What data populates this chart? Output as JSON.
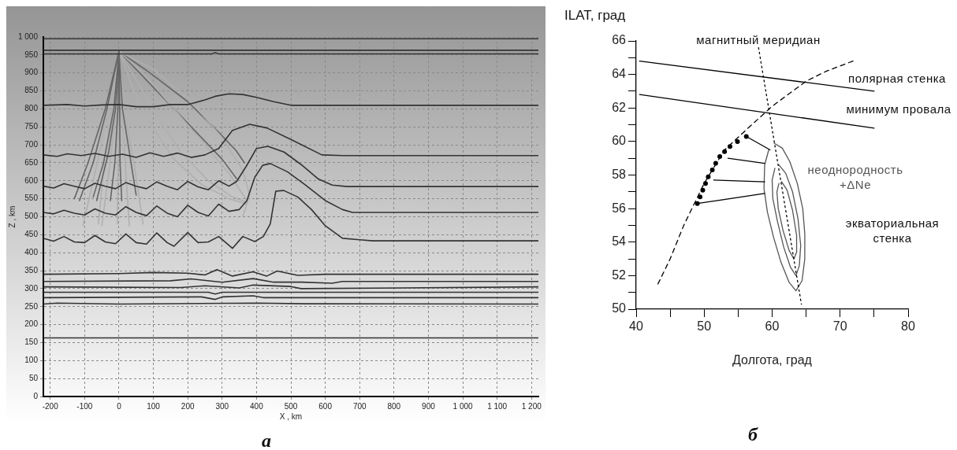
{
  "chart_data": [
    {
      "type": "line",
      "xlabel": "X , km",
      "ylabel": "Z , km",
      "xlim": [
        -220,
        1220
      ],
      "ylim": [
        0,
        1000
      ],
      "xticks": [
        -200,
        -100,
        0,
        100,
        200,
        300,
        400,
        500,
        600,
        700,
        800,
        900,
        {
          "value": 1000,
          "label": "1 000"
        },
        {
          "value": 1100,
          "label": "1 100"
        },
        {
          "value": 1200,
          "label": "1 200"
        }
      ],
      "yticks": [
        0,
        50,
        100,
        150,
        200,
        250,
        300,
        350,
        400,
        450,
        500,
        550,
        600,
        650,
        700,
        750,
        800,
        850,
        900,
        950,
        {
          "value": 1000,
          "label": "1 000"
        }
      ],
      "grid": true,
      "marker": "none",
      "annotations": [
        "а"
      ],
      "series": [
        {
          "color": "#333333",
          "x": [
            -220,
            1220
          ],
          "values": [
            995,
            995
          ]
        },
        {
          "color": "#333333",
          "x": [
            -220,
            1220
          ],
          "values": [
            963,
            963
          ]
        },
        {
          "color": "#333333",
          "x": [
            -220,
            270,
            280,
            290,
            1220
          ],
          "values": [
            953,
            953,
            956,
            953,
            953
          ]
        },
        {
          "color": "#333333",
          "x": [
            -220,
            -150,
            -100,
            -50,
            0,
            50,
            100,
            150,
            200,
            250,
            280,
            320,
            360,
            400,
            450,
            500,
            600,
            800,
            1220
          ],
          "values": [
            810,
            812,
            808,
            811,
            812,
            806,
            806,
            812,
            812,
            825,
            835,
            842,
            840,
            832,
            820,
            810,
            810,
            810,
            810
          ]
        },
        {
          "color": "#333333",
          "x": [
            -220,
            -180,
            -150,
            -110,
            -70,
            -30,
            10,
            50,
            90,
            130,
            170,
            210,
            250,
            290,
            330,
            380,
            430,
            500,
            590,
            650,
            1220
          ],
          "values": [
            672,
            668,
            675,
            670,
            676,
            668,
            674,
            665,
            678,
            668,
            677,
            665,
            672,
            690,
            740,
            757,
            747,
            715,
            672,
            670,
            670
          ]
        },
        {
          "color": "#333333",
          "x": [
            -220,
            -190,
            -160,
            -130,
            -100,
            -70,
            -40,
            -10,
            20,
            50,
            80,
            110,
            140,
            170,
            200,
            230,
            260,
            290,
            320,
            342,
            370,
            400,
            433,
            480,
            530,
            580,
            620,
            663,
            1220
          ],
          "values": [
            585,
            580,
            592,
            585,
            578,
            593,
            585,
            578,
            595,
            585,
            578,
            597,
            585,
            575,
            598,
            583,
            575,
            600,
            585,
            598,
            640,
            690,
            696,
            680,
            645,
            605,
            588,
            584,
            584
          ]
        },
        {
          "color": "#333333",
          "x": [
            -220,
            -190,
            -160,
            -130,
            -100,
            -70,
            -40,
            -10,
            20,
            50,
            80,
            110,
            140,
            170,
            200,
            230,
            260,
            290,
            320,
            350,
            372,
            395,
            418,
            440,
            490,
            540,
            600,
            650,
            679,
            1220
          ],
          "values": [
            512,
            508,
            518,
            510,
            505,
            522,
            510,
            505,
            528,
            512,
            503,
            530,
            510,
            500,
            532,
            512,
            502,
            535,
            515,
            520,
            545,
            610,
            643,
            648,
            625,
            590,
            545,
            520,
            512,
            512
          ]
        },
        {
          "color": "#333333",
          "x": [
            -220,
            -190,
            -160,
            -130,
            -100,
            -70,
            -40,
            -10,
            20,
            50,
            80,
            110,
            140,
            160,
            200,
            230,
            260,
            290,
            330,
            360,
            395,
            420,
            440,
            456,
            479,
            520,
            560,
            600,
            650,
            700,
            738,
            1220
          ],
          "values": [
            440,
            432,
            445,
            430,
            428,
            448,
            430,
            425,
            452,
            428,
            424,
            455,
            428,
            418,
            456,
            428,
            430,
            445,
            412,
            445,
            431,
            445,
            480,
            571,
            573,
            555,
            520,
            475,
            440,
            436,
            433,
            433
          ]
        },
        {
          "color": "#333333",
          "x": [
            -220,
            0,
            100,
            200,
            250,
            285,
            330,
            390,
            430,
            460,
            520,
            600,
            1220
          ],
          "values": [
            340,
            342,
            345,
            343,
            338,
            353,
            335,
            347,
            335,
            349,
            337,
            340,
            340
          ]
        },
        {
          "color": "#333333",
          "x": [
            -220,
            150,
            210,
            300,
            390,
            450,
            530,
            620,
            650,
            1220
          ],
          "values": [
            320,
            322,
            327,
            318,
            328,
            318,
            318,
            315,
            320,
            320
          ]
        },
        {
          "color": "#333333",
          "x": [
            -220,
            180,
            250,
            350,
            390,
            500,
            530,
            1220
          ],
          "values": [
            305,
            303,
            308,
            302,
            310,
            306,
            300,
            305
          ]
        },
        {
          "color": "#333333",
          "x": [
            -220,
            260,
            280,
            300,
            1220
          ],
          "values": [
            290,
            290,
            285,
            290,
            290
          ]
        },
        {
          "color": "#333333",
          "x": [
            -220,
            240,
            280,
            300,
            390,
            420,
            1220
          ],
          "values": [
            275,
            277,
            270,
            277,
            280,
            275,
            275
          ]
        },
        {
          "color": "#333333",
          "x": [
            -220,
            -180,
            0,
            400,
            540,
            1220
          ],
          "values": [
            257,
            260,
            257,
            260,
            258,
            257
          ]
        },
        {
          "color": "#333333",
          "x": [
            -220,
            1220
          ],
          "values": [
            163,
            163
          ]
        },
        {
          "color": "#666666",
          "x": [
            0,
            -40,
            -90,
            -130
          ],
          "values": [
            960,
            800,
            650,
            550
          ]
        },
        {
          "color": "#666666",
          "x": [
            0,
            -35,
            -75,
            -115
          ],
          "values": [
            960,
            800,
            650,
            545
          ]
        },
        {
          "color": "#666666",
          "x": [
            0,
            -15,
            -45,
            -75
          ],
          "values": [
            960,
            800,
            650,
            555
          ]
        },
        {
          "color": "#666666",
          "x": [
            0,
            -10,
            -30,
            -65
          ],
          "values": [
            960,
            800,
            680,
            545
          ]
        },
        {
          "color": "#666666",
          "x": [
            0,
            -3,
            -12,
            -25
          ],
          "values": [
            960,
            800,
            650,
            545
          ]
        },
        {
          "color": "#666666",
          "x": [
            0,
            2,
            3,
            8
          ],
          "values": [
            960,
            800,
            650,
            545
          ]
        },
        {
          "color": "#666666",
          "x": [
            0,
            10,
            30,
            50
          ],
          "values": [
            960,
            800,
            680,
            560
          ]
        },
        {
          "color": "#b0b0b0",
          "x": [
            0,
            -30,
            -70,
            -105
          ],
          "values": [
            960,
            800,
            620,
            475
          ]
        },
        {
          "color": "#b0b0b0",
          "x": [
            0,
            -20,
            -45,
            -60
          ],
          "values": [
            960,
            800,
            630,
            480
          ]
        },
        {
          "color": "#b0b0b0",
          "x": [
            0,
            -10,
            -30,
            -50
          ],
          "values": [
            960,
            780,
            620,
            475
          ]
        },
        {
          "color": "#b0b0b0",
          "x": [
            0,
            0,
            -3,
            -5
          ],
          "values": [
            960,
            800,
            620,
            480
          ]
        },
        {
          "color": "#b0b0b0",
          "x": [
            0,
            8,
            20,
            30
          ],
          "values": [
            960,
            800,
            620,
            475
          ]
        },
        {
          "color": "#b0b0b0",
          "x": [
            0,
            15,
            45,
            70
          ],
          "values": [
            960,
            800,
            640,
            480
          ]
        },
        {
          "color": "#b0b0b0",
          "x": [
            0,
            50,
            110,
            180,
            260,
            330,
            372
          ],
          "values": [
            960,
            880,
            780,
            680,
            600,
            555,
            540
          ]
        },
        {
          "color": "#b0b0b0",
          "x": [
            0,
            70,
            160,
            250,
            320,
            372
          ],
          "values": [
            960,
            900,
            800,
            700,
            620,
            545
          ]
        },
        {
          "color": "#b0b0b0",
          "x": [
            0,
            100,
            210,
            300,
            360,
            380,
            360
          ],
          "values": [
            960,
            910,
            820,
            720,
            630,
            560,
            500
          ]
        },
        {
          "color": "#b0b0b0",
          "x": [
            0,
            40,
            90,
            160,
            240,
            320,
            372
          ],
          "values": [
            960,
            860,
            760,
            660,
            590,
            550,
            535
          ]
        },
        {
          "color": "#666666",
          "x": [
            0,
            60,
            150,
            230,
            300,
            342
          ],
          "values": [
            960,
            900,
            810,
            730,
            660,
            606
          ]
        },
        {
          "color": "#666666",
          "x": [
            0,
            90,
            200,
            290,
            340,
            365
          ],
          "values": [
            960,
            900,
            820,
            735,
            685,
            650
          ]
        }
      ]
    },
    {
      "type": "line",
      "xlabel": "Долгота, град",
      "ylabel": "ILAT, град",
      "xlim": [
        40,
        80
      ],
      "ylim": [
        50,
        66
      ],
      "xticks": [
        40,
        {
          "value": 45,
          "label": null
        },
        50,
        {
          "value": 55,
          "label": null
        },
        60,
        {
          "value": 65,
          "label": null
        },
        70,
        {
          "value": 75,
          "label": null
        },
        80
      ],
      "yticks": [
        50,
        {
          "value": 51,
          "label": null
        },
        52,
        {
          "value": 53,
          "label": null
        },
        54,
        {
          "value": 55,
          "label": null
        },
        56,
        {
          "value": 57,
          "label": null
        },
        58,
        {
          "value": 59,
          "label": null
        },
        60,
        {
          "value": 61,
          "label": null
        },
        62,
        {
          "value": 63,
          "label": null
        },
        64,
        {
          "value": 65,
          "label": null
        },
        66
      ],
      "marker": "none",
      "annotations": [
        "магнитный меридиан",
        "полярная стенка",
        "минимум провала",
        "неоднородность\n+ΔNe",
        "экваториальная\nстенка",
        "б"
      ],
      "series": [
        {
          "color": "#000000",
          "x": [
            40.5,
            75
          ],
          "values": [
            64.8,
            63.0
          ]
        },
        {
          "color": "#000000",
          "x": [
            40.5,
            75
          ],
          "values": [
            62.8,
            60.8
          ]
        },
        {
          "color": "#000000",
          "line_style": "dotted",
          "x": [
            58.0,
            64.3
          ],
          "values": [
            65.6,
            50.3
          ]
        },
        {
          "color": "#000000",
          "line_style": "dashed",
          "x": [
            43.2,
            45,
            47,
            50,
            53,
            57,
            60,
            65,
            68,
            71.9
          ],
          "values": [
            51.5,
            53,
            55,
            57.5,
            59.5,
            61,
            62.1,
            63.6,
            64.2,
            64.8
          ]
        },
        {
          "color": "#000000",
          "x": [
            56.2,
            59.7
          ],
          "values": [
            60.3,
            59.5
          ]
        },
        {
          "color": "#000000",
          "x": [
            53.5,
            58.9
          ],
          "values": [
            59.0,
            58.7
          ]
        },
        {
          "color": "#000000",
          "x": [
            51.4,
            58.9
          ],
          "values": [
            57.7,
            57.6
          ]
        },
        {
          "color": "#000000",
          "x": [
            49.0,
            58.9
          ],
          "values": [
            56.3,
            56.9
          ]
        },
        {
          "color": "#555555",
          "x": [
            60.3,
            61.5,
            62.6,
            63.7,
            64.5,
            64.8,
            64.8,
            64.4,
            63.5,
            62.5,
            61.3,
            60.2,
            59.3,
            58.8,
            58.9,
            59.5
          ],
          "values": [
            59.9,
            59.6,
            58.8,
            57.5,
            56.0,
            54.5,
            53.0,
            51.7,
            51.1,
            51.6,
            52.8,
            54.3,
            55.8,
            57.2,
            58.6,
            59.5
          ]
        },
        {
          "color": "#555555",
          "x": [
            61.0,
            62.0,
            63.0,
            63.8,
            64.2,
            64.0,
            63.5,
            62.7,
            61.7,
            60.8,
            60.1,
            60.0,
            60.4
          ],
          "values": [
            58.6,
            58.1,
            57.0,
            55.4,
            53.8,
            52.6,
            52.0,
            52.5,
            53.7,
            55.2,
            56.6,
            57.7,
            58.4
          ]
        },
        {
          "color": "#555555",
          "x": [
            61.4,
            62.2,
            63.0,
            63.6,
            63.6,
            63.2,
            62.5,
            61.6,
            60.9,
            60.7,
            61.0
          ],
          "values": [
            57.6,
            57.1,
            55.9,
            54.4,
            53.4,
            53.0,
            53.5,
            54.7,
            56.0,
            57.0,
            57.5
          ]
        },
        {
          "type": "scatter",
          "marker": "circle",
          "color": "#000000",
          "x": [
            49.0,
            49.4,
            49.8,
            50.2,
            50.6,
            51.2,
            51.7,
            52.3,
            53.0,
            53.8,
            54.9,
            56.2
          ],
          "values": [
            56.3,
            56.7,
            57.1,
            57.5,
            57.9,
            58.3,
            58.7,
            59.1,
            59.4,
            59.7,
            60.0,
            60.3
          ]
        }
      ]
    }
  ]
}
